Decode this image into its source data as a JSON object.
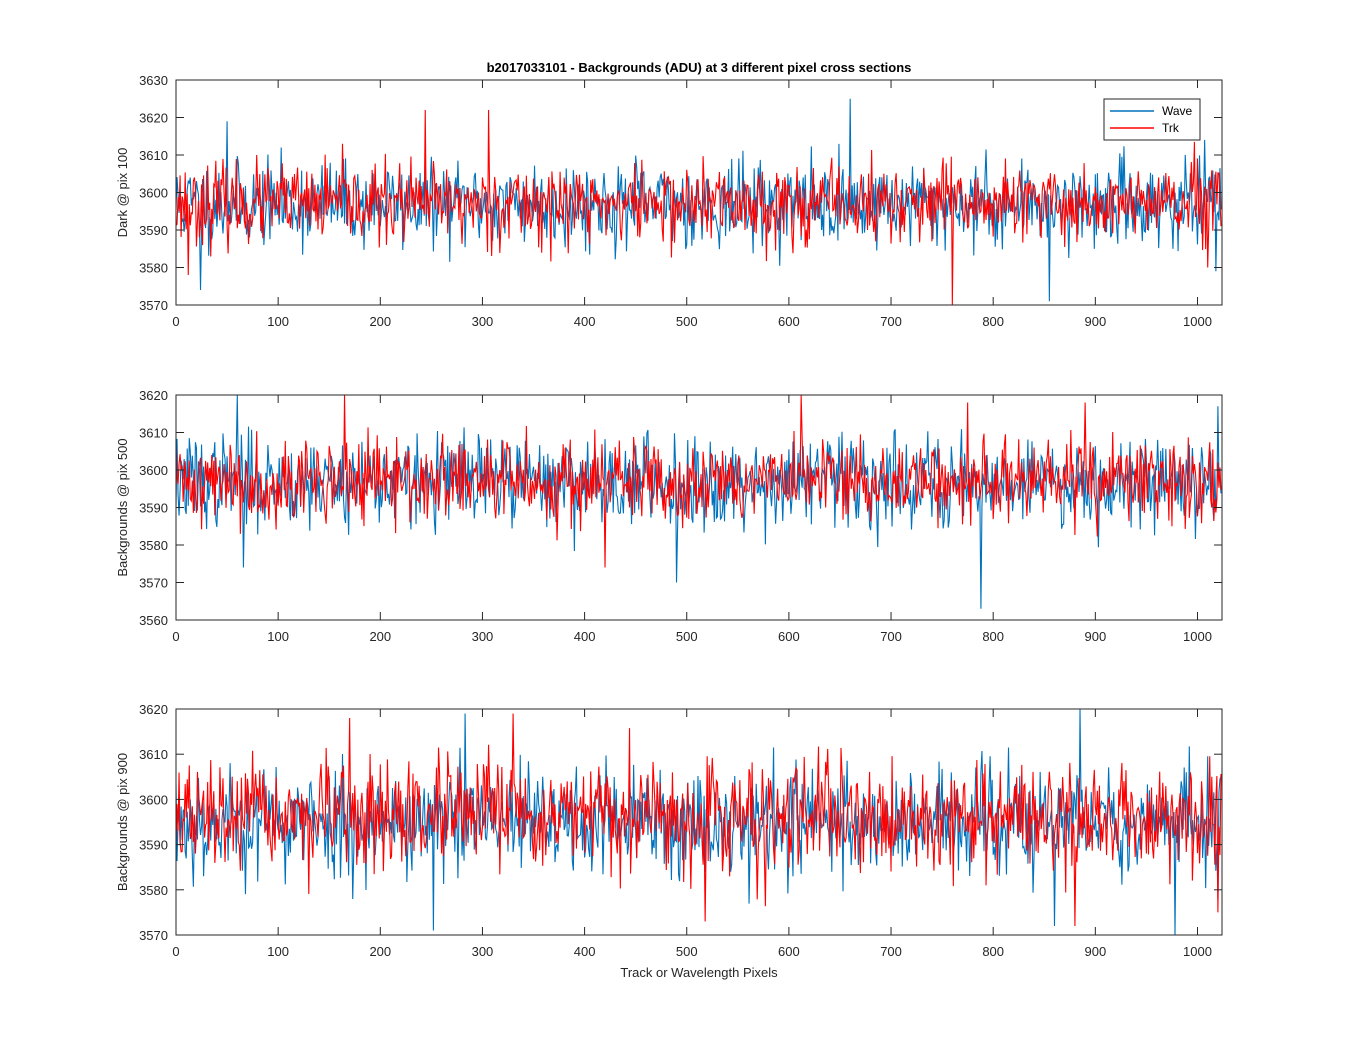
{
  "chart_data": [
    {
      "type": "line",
      "title": "b2017033101 - Backgrounds (ADU) at 3 different pixel cross sections",
      "xlabel": "",
      "ylabel": "Dark @ pix 100",
      "xlim": [
        0,
        1024
      ],
      "ylim": [
        3570,
        3630
      ],
      "xticks": [
        0,
        100,
        200,
        300,
        400,
        500,
        600,
        700,
        800,
        900,
        1000
      ],
      "yticks": [
        3570,
        3580,
        3590,
        3600,
        3610,
        3620,
        3630
      ],
      "legend": {
        "location": "top-right",
        "entries": [
          "Wave",
          "Trk"
        ]
      },
      "series": [
        {
          "name": "Wave",
          "color": "#0072BD",
          "mean": 3597,
          "spread": 5.5,
          "n": 1024,
          "seed": 11,
          "peaks": [
            [
              24,
              3574
            ],
            [
              50,
              3619
            ],
            [
              660,
              3625
            ],
            [
              855,
              3571
            ],
            [
              1018,
              3579
            ]
          ]
        },
        {
          "name": "Trk",
          "color": "#FF0000",
          "mean": 3597,
          "spread": 5.2,
          "n": 1024,
          "seed": 23,
          "peaks": [
            [
              12,
              3578
            ],
            [
              244,
              3622
            ],
            [
              306,
              3622
            ],
            [
              760,
              3570
            ],
            [
              1010,
              3580
            ]
          ]
        }
      ]
    },
    {
      "type": "line",
      "title": "",
      "xlabel": "",
      "ylabel": "Backgrounds @ pix 500",
      "xlim": [
        0,
        1024
      ],
      "ylim": [
        3560,
        3620
      ],
      "xticks": [
        0,
        100,
        200,
        300,
        400,
        500,
        600,
        700,
        800,
        900,
        1000
      ],
      "yticks": [
        3560,
        3570,
        3580,
        3590,
        3600,
        3610,
        3620
      ],
      "series": [
        {
          "name": "Wave",
          "color": "#0072BD",
          "mean": 3597,
          "spread": 6.0,
          "n": 1024,
          "seed": 37,
          "peaks": [
            [
              60,
              3620
            ],
            [
              66,
              3574
            ],
            [
              490,
              3570
            ],
            [
              788,
              3563
            ],
            [
              1020,
              3617
            ]
          ]
        },
        {
          "name": "Trk",
          "color": "#FF0000",
          "mean": 3597,
          "spread": 5.5,
          "n": 1024,
          "seed": 41,
          "peaks": [
            [
              165,
              3620
            ],
            [
              420,
              3574
            ],
            [
              612,
              3620
            ],
            [
              775,
              3618
            ],
            [
              890,
              3618
            ]
          ]
        }
      ]
    },
    {
      "type": "line",
      "title": "",
      "xlabel": "Track or Wavelength Pixels",
      "ylabel": "Backgrounds @ pix 900",
      "xlim": [
        0,
        1024
      ],
      "ylim": [
        3570,
        3620
      ],
      "xticks": [
        0,
        100,
        200,
        300,
        400,
        500,
        600,
        700,
        800,
        900,
        1000
      ],
      "yticks": [
        3570,
        3580,
        3590,
        3600,
        3610,
        3620
      ],
      "series": [
        {
          "name": "Wave",
          "color": "#0072BD",
          "mean": 3595,
          "spread": 6.0,
          "n": 1024,
          "seed": 53,
          "peaks": [
            [
              252,
              3571
            ],
            [
              283,
              3619
            ],
            [
              860,
              3572
            ],
            [
              885,
              3620
            ],
            [
              978,
              3570
            ]
          ]
        },
        {
          "name": "Trk",
          "color": "#FF0000",
          "mean": 3596,
          "spread": 5.8,
          "n": 1024,
          "seed": 67,
          "peaks": [
            [
              330,
              3619
            ],
            [
              170,
              3618
            ],
            [
              518,
              3573
            ],
            [
              880,
              3572
            ],
            [
              1020,
              3575
            ]
          ]
        }
      ]
    }
  ]
}
